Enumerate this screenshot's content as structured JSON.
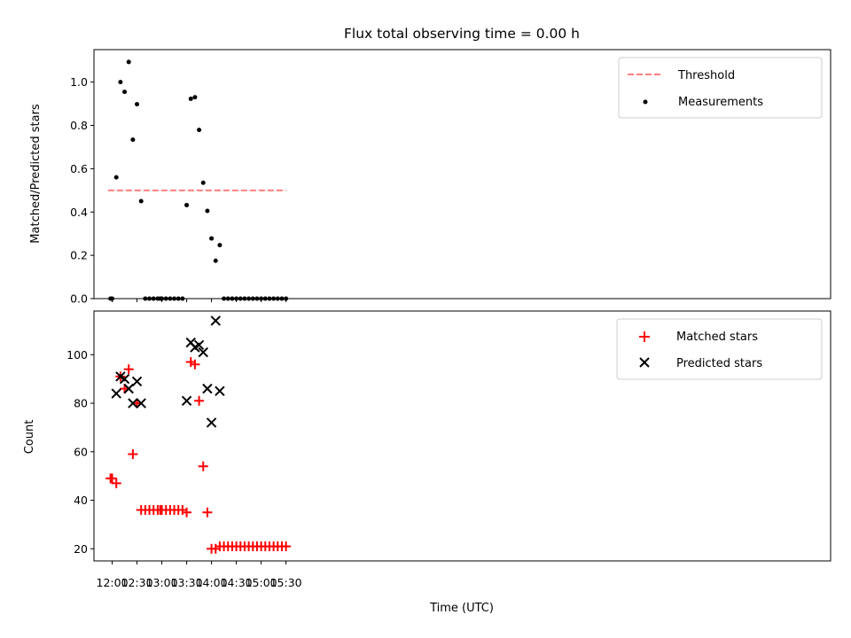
{
  "chart_data": [
    {
      "type": "scatter",
      "title": "Flux total observing time = 0.00 h",
      "xlabel": "",
      "ylabel": "Matched/Predicted stars",
      "ylim": [
        0,
        1.15
      ],
      "yticks": [
        0.0,
        0.2,
        0.4,
        0.6,
        0.8,
        1.0
      ],
      "ytick_labels": [
        "0.0",
        "0.2",
        "0.4",
        "0.6",
        "0.8",
        "1.0"
      ],
      "xlim_minutes": [
        698,
        1588
      ],
      "legend_position": "top-right",
      "threshold": {
        "name": "Threshold",
        "value": 0.5,
        "x_range": [
          "11:55",
          "15:30"
        ],
        "color": "#ff7f7f"
      },
      "series": [
        {
          "name": "Measurements",
          "color": "#000000",
          "marker": "dot",
          "x": [
            "11:58",
            "12:00",
            "12:05",
            "12:10",
            "12:15",
            "12:20",
            "12:25",
            "12:30",
            "12:35",
            "12:40",
            "12:45",
            "12:50",
            "12:55",
            "12:58",
            "13:00",
            "13:05",
            "13:10",
            "13:15",
            "13:20",
            "13:25",
            "13:30",
            "13:35",
            "13:40",
            "13:45",
            "13:50",
            "13:55",
            "14:00",
            "14:05",
            "14:10",
            "14:15",
            "14:20",
            "14:25",
            "14:30",
            "14:35",
            "14:40",
            "14:45",
            "14:50",
            "14:55",
            "15:00",
            "15:05",
            "15:10",
            "15:15",
            "15:20",
            "15:25",
            "15:30"
          ],
          "values": [
            0.0,
            0.0,
            0.56,
            1.0,
            0.955,
            1.093,
            0.734,
            0.898,
            0.45,
            0.0,
            0.0,
            0.0,
            0.0,
            0.0,
            0.0,
            0.0,
            0.0,
            0.0,
            0.0,
            0.0,
            0.432,
            0.923,
            0.93,
            0.779,
            0.535,
            0.405,
            0.278,
            0.175,
            0.247,
            0.0,
            0.0,
            0.0,
            0.0,
            0.0,
            0.0,
            0.0,
            0.0,
            0.0,
            0.0,
            0.0,
            0.0,
            0.0,
            0.0,
            0.0,
            0.0
          ]
        }
      ]
    },
    {
      "type": "scatter",
      "title": "",
      "xlabel": "Time (UTC)",
      "ylabel": "Count",
      "ylim": [
        15,
        118
      ],
      "yticks": [
        20,
        40,
        60,
        80,
        100
      ],
      "ytick_labels": [
        "20",
        "40",
        "60",
        "80",
        "100"
      ],
      "xticks": [
        "12:00",
        "12:30",
        "13:00",
        "13:30",
        "14:00",
        "14:30",
        "15:00",
        "15:30"
      ],
      "xlim_minutes": [
        698,
        1588
      ],
      "legend_position": "top-right",
      "series": [
        {
          "name": "Matched stars",
          "color": "#ff0000",
          "marker": "plus",
          "x": [
            "11:58",
            "12:00",
            "12:05",
            "12:10",
            "12:15",
            "12:20",
            "12:25",
            "12:30",
            "12:35",
            "12:40",
            "12:45",
            "12:50",
            "12:55",
            "12:58",
            "13:00",
            "13:05",
            "13:10",
            "13:15",
            "13:20",
            "13:25",
            "13:30",
            "13:35",
            "13:40",
            "13:45",
            "13:50",
            "13:55",
            "14:00",
            "14:05",
            "14:10",
            "14:15",
            "14:20",
            "14:25",
            "14:30",
            "14:35",
            "14:40",
            "14:45",
            "14:50",
            "14:55",
            "15:00",
            "15:05",
            "15:10",
            "15:15",
            "15:20",
            "15:25",
            "15:30"
          ],
          "values": [
            49,
            49,
            47,
            91,
            86,
            94,
            59,
            80,
            36,
            36,
            36,
            36,
            36,
            36,
            36,
            36,
            36,
            36,
            36,
            36,
            35,
            97,
            96,
            81,
            54,
            35,
            20,
            20,
            21,
            21,
            21,
            21,
            21,
            21,
            21,
            21,
            21,
            21,
            21,
            21,
            21,
            21,
            21,
            21,
            21
          ]
        },
        {
          "name": "Predicted stars",
          "color": "#000000",
          "marker": "x",
          "x": [
            "12:05",
            "12:10",
            "12:15",
            "12:20",
            "12:25",
            "12:30",
            "12:35",
            "13:30",
            "13:35",
            "13:40",
            "13:45",
            "13:50",
            "13:55",
            "14:00",
            "14:05",
            "14:10"
          ],
          "values": [
            84,
            91,
            90,
            86,
            80,
            89,
            80,
            81,
            105,
            103,
            104,
            101,
            86,
            72,
            114,
            85
          ]
        }
      ]
    }
  ]
}
